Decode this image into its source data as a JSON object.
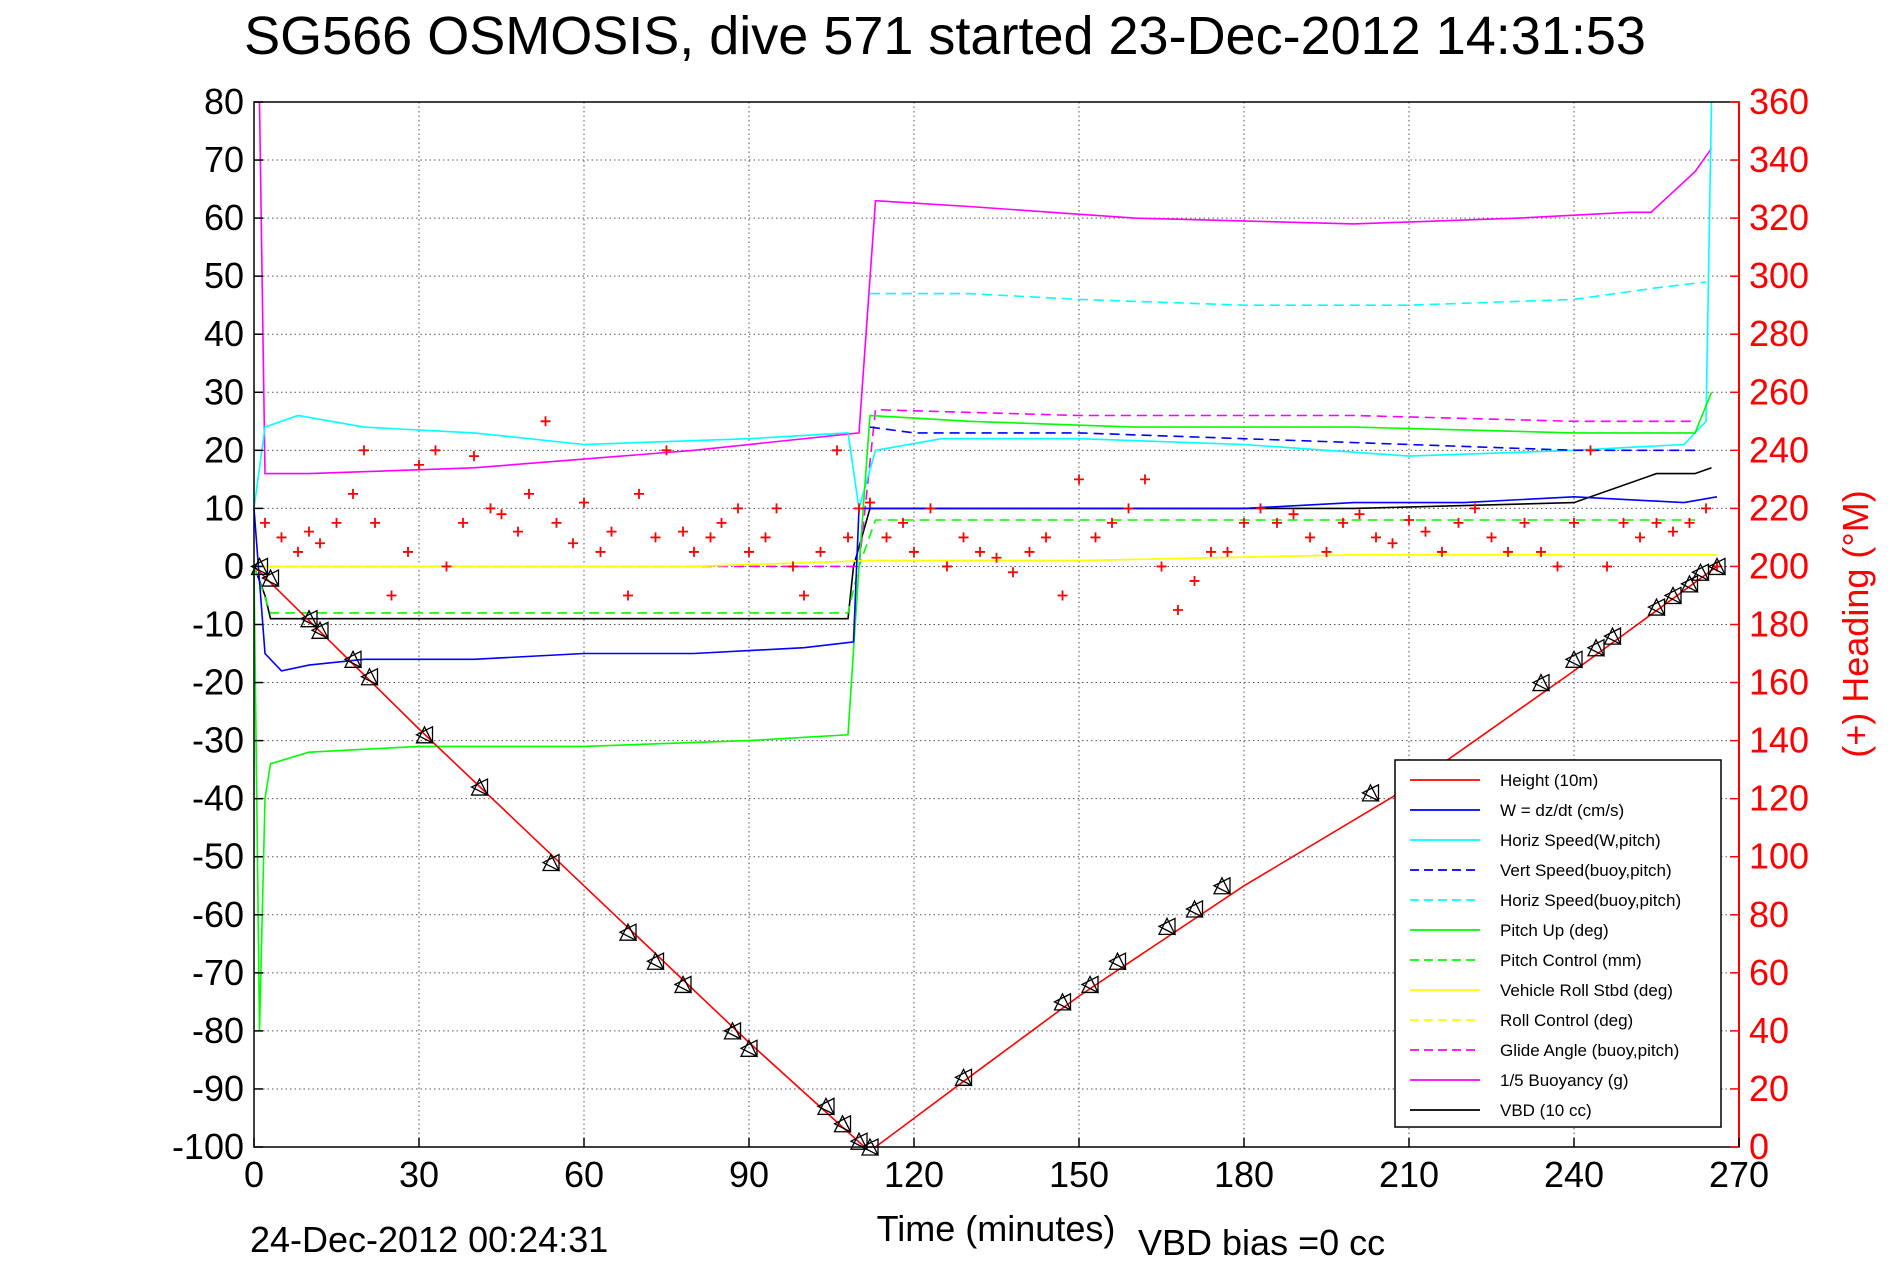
{
  "chart_data": {
    "type": "line",
    "title": "SG566 OSMOSIS, dive 571 started 23-Dec-2012 14:31:53",
    "xlabel": "Time (minutes)",
    "ylabel": "",
    "y2label": "(+) Heading (°M)",
    "footer_left": "24-Dec-2012 00:24:31",
    "footer_right": "VBD bias =0 cc",
    "xlim": [
      0,
      270
    ],
    "ylim": [
      -100,
      80
    ],
    "y2lim": [
      0,
      360
    ],
    "xticks": [
      "0",
      "30",
      "60",
      "90",
      "120",
      "150",
      "180",
      "210",
      "240",
      "270"
    ],
    "yticks": [
      "80",
      "70",
      "60",
      "50",
      "40",
      "30",
      "20",
      "10",
      "0",
      "-10",
      "-20",
      "-30",
      "-40",
      "-50",
      "-60",
      "-70",
      "-80",
      "-90",
      "-100"
    ],
    "y2ticks": [
      "360",
      "340",
      "320",
      "300",
      "280",
      "260",
      "240",
      "220",
      "200",
      "180",
      "160",
      "140",
      "120",
      "100",
      "80",
      "60",
      "40",
      "20",
      "0"
    ],
    "grid": true,
    "legend_position": "bottom-right",
    "colors": {
      "red": "#ff0000",
      "blue": "#0000ff",
      "cyan": "#00ffff",
      "green": "#00ff00",
      "yellow": "#ffff00",
      "magenta": "#ff00ff",
      "black": "#000000"
    },
    "series": [
      {
        "name": "Height (10m)",
        "color": "#ff0000",
        "style": "solid",
        "x": [
          0,
          30,
          60,
          90,
          111,
          113,
          130,
          150,
          180,
          210,
          240,
          266
        ],
        "y": [
          0,
          -28,
          -55,
          -82,
          -100,
          -100,
          -88,
          -74,
          -55,
          -38,
          -18,
          0
        ]
      },
      {
        "name": "W = dz/dt (cm/s)",
        "color": "#0000ff",
        "style": "solid",
        "x": [
          0,
          2,
          5,
          10,
          20,
          40,
          60,
          80,
          100,
          109,
          110,
          112,
          120,
          140,
          180,
          200,
          220,
          240,
          260,
          266
        ],
        "y": [
          10,
          -15,
          -18,
          -17,
          -16,
          -16,
          -15,
          -15,
          -14,
          -13,
          10,
          10,
          10,
          10,
          10,
          11,
          11,
          12,
          11,
          12
        ]
      },
      {
        "name": "Horiz Speed(W,pitch)",
        "color": "#00ffff",
        "style": "solid",
        "x": [
          0,
          2,
          8,
          20,
          40,
          60,
          90,
          108,
          110,
          113,
          125,
          150,
          180,
          210,
          240,
          260,
          264,
          265
        ],
        "y": [
          10,
          24,
          26,
          24,
          23,
          21,
          22,
          23,
          10,
          20,
          22,
          22,
          21,
          19,
          20,
          21,
          25,
          80
        ]
      },
      {
        "name": "Vert Speed(buoy,pitch)",
        "color": "#0000ff",
        "style": "dashed",
        "x": [
          112,
          120,
          150,
          180,
          210,
          240,
          262
        ],
        "y": [
          24,
          23,
          23,
          22,
          21,
          20,
          20
        ]
      },
      {
        "name": "Horiz Speed(buoy,pitch)",
        "color": "#00ffff",
        "style": "dashed",
        "x": [
          112,
          115,
          130,
          150,
          180,
          210,
          240,
          255,
          264
        ],
        "y": [
          47,
          47,
          47,
          46,
          45,
          45,
          46,
          48,
          49
        ]
      },
      {
        "name": "Pitch Up (deg)",
        "color": "#00ff00",
        "style": "solid",
        "x": [
          0,
          1,
          2,
          3,
          10,
          30,
          60,
          90,
          108,
          110,
          112,
          130,
          160,
          200,
          240,
          262,
          265
        ],
        "y": [
          0,
          -80,
          -40,
          -34,
          -32,
          -31,
          -31,
          -30,
          -29,
          0,
          26,
          25,
          24,
          24,
          23,
          23,
          30
        ]
      },
      {
        "name": "Pitch Control (mm)",
        "color": "#00ff00",
        "style": "dashed",
        "x": [
          0,
          3,
          10,
          50,
          108,
          110,
          113,
          160,
          262
        ],
        "y": [
          0,
          -8,
          -8,
          -8,
          -8,
          0,
          8,
          8,
          8
        ]
      },
      {
        "name": "Vehicle Roll Stbd (deg)",
        "color": "#ffff00",
        "style": "solid",
        "x": [
          0,
          40,
          80,
          112,
          150,
          200,
          240,
          266
        ],
        "y": [
          0,
          0,
          0,
          1,
          1,
          2,
          2,
          2
        ]
      },
      {
        "name": "Roll Control (deg)",
        "color": "#ffff00",
        "style": "dashed",
        "x": [
          0,
          40,
          80,
          112,
          150,
          200,
          240,
          266
        ],
        "y": [
          0,
          0,
          0,
          1,
          1,
          2,
          2,
          2
        ]
      },
      {
        "name": "Glide Angle (buoy,pitch)",
        "color": "#ff00ff",
        "style": "dashed",
        "x": [
          0,
          10,
          50,
          110,
          113,
          150,
          200,
          240,
          262
        ],
        "y": [
          0,
          0,
          0,
          0,
          27,
          26,
          26,
          25,
          25
        ]
      },
      {
        "name": "1/5 Buoyancy (g)",
        "color": "#ff00ff",
        "style": "solid",
        "x": [
          1,
          2,
          10,
          40,
          80,
          110,
          113,
          130,
          160,
          200,
          230,
          250,
          254,
          262,
          265
        ],
        "y": [
          80,
          16,
          16,
          17,
          20,
          23,
          63,
          62,
          60,
          59,
          60,
          61,
          61,
          68,
          72
        ]
      },
      {
        "name": "VBD (10 cc)",
        "color": "#000000",
        "style": "solid",
        "x": [
          0,
          2,
          3,
          108,
          109,
          112,
          130,
          160,
          200,
          240,
          255,
          262,
          265
        ],
        "y": [
          0,
          -5,
          -9,
          -9,
          0,
          10,
          10,
          10,
          10,
          11,
          16,
          16,
          17
        ]
      }
    ],
    "heading_series": {
      "axis": "right",
      "color": "#ff0000",
      "marker": "+",
      "x": [
        2,
        5,
        8,
        10,
        12,
        15,
        18,
        20,
        22,
        25,
        28,
        30,
        33,
        35,
        38,
        40,
        43,
        45,
        48,
        50,
        53,
        55,
        58,
        60,
        63,
        65,
        68,
        70,
        73,
        75,
        78,
        80,
        83,
        85,
        88,
        90,
        93,
        95,
        98,
        100,
        103,
        106,
        108,
        110,
        112,
        115,
        118,
        120,
        123,
        126,
        129,
        132,
        135,
        138,
        141,
        144,
        147,
        150,
        153,
        156,
        159,
        162,
        165,
        168,
        171,
        174,
        177,
        180,
        183,
        186,
        189,
        192,
        195,
        198,
        201,
        204,
        207,
        210,
        213,
        216,
        219,
        222,
        225,
        228,
        231,
        234,
        237,
        240,
        243,
        246,
        249,
        252,
        255,
        258,
        261,
        264,
        266
      ],
      "y": [
        215,
        210,
        205,
        212,
        208,
        215,
        225,
        240,
        215,
        190,
        205,
        235,
        240,
        200,
        215,
        238,
        220,
        218,
        212,
        225,
        250,
        215,
        208,
        222,
        205,
        212,
        190,
        225,
        210,
        240,
        212,
        205,
        210,
        215,
        220,
        205,
        210,
        220,
        200,
        190,
        205,
        240,
        210,
        220,
        222,
        210,
        215,
        205,
        220,
        200,
        210,
        205,
        203,
        198,
        205,
        210,
        190,
        230,
        210,
        215,
        220,
        230,
        200,
        185,
        195,
        205,
        205,
        215,
        220,
        215,
        218,
        210,
        205,
        215,
        218,
        210,
        208,
        216,
        212,
        205,
        215,
        220,
        210,
        205,
        215,
        205,
        200,
        215,
        240,
        200,
        215,
        210,
        215,
        212,
        215,
        220,
        200
      ]
    },
    "depth_markers": {
      "x": [
        1,
        3,
        10,
        12,
        18,
        21,
        31,
        41,
        54,
        68,
        73,
        78,
        87,
        90,
        104,
        107,
        110,
        112,
        129,
        147,
        152,
        157,
        166,
        171,
        176,
        203,
        234,
        240,
        244,
        247,
        255,
        258,
        261,
        263,
        266
      ],
      "y": [
        0,
        -2,
        -9,
        -11,
        -16,
        -19,
        -29,
        -38,
        -51,
        -63,
        -68,
        -72,
        -80,
        -83,
        -93,
        -96,
        -99,
        -100,
        -88,
        -75,
        -72,
        -68,
        -62,
        -59,
        -55,
        -39,
        -20,
        -16,
        -14,
        -12,
        -7,
        -5,
        -3,
        -1,
        0
      ]
    }
  }
}
